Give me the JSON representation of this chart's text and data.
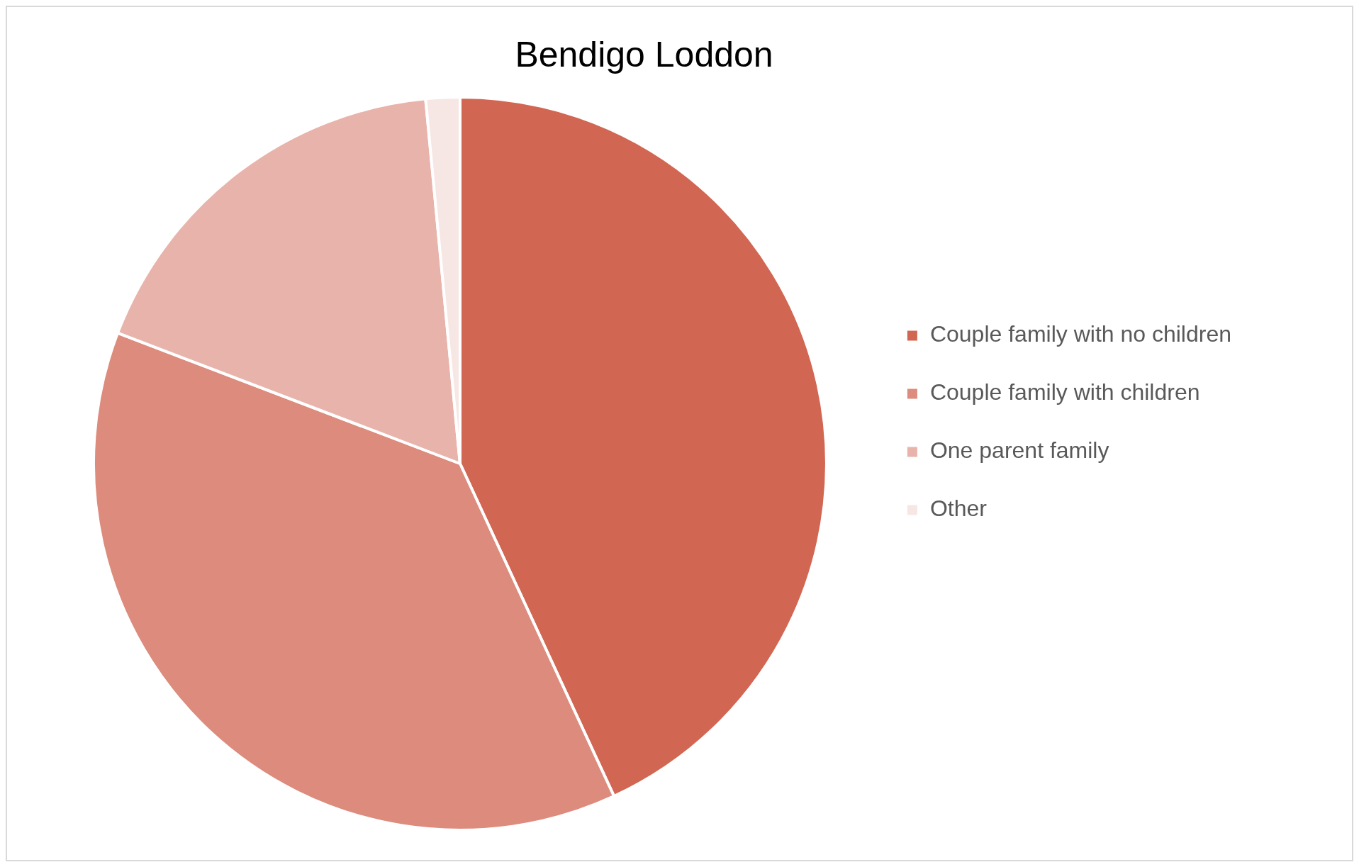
{
  "chart_data": {
    "type": "pie",
    "title": "Bendigo Loddon",
    "categories": [
      "Couple family with no children",
      "Couple family with children",
      "One parent family",
      "Other"
    ],
    "values": [
      43.1,
      37.7,
      17.7,
      1.5
    ],
    "colors": [
      "#d16652",
      "#dc8b7d",
      "#e8b3aa",
      "#f7e7e4"
    ],
    "legend": "right"
  }
}
